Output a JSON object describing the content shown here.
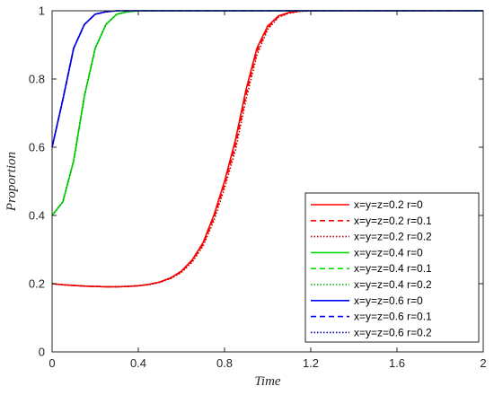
{
  "chart_data": {
    "type": "line",
    "title": "",
    "xlabel": "Time",
    "ylabel": "Proportion",
    "xlim": [
      0,
      2
    ],
    "ylim": [
      0,
      1
    ],
    "xticks": [
      "0",
      "0.4",
      "0.8",
      "1.2",
      "1.6",
      "2"
    ],
    "yticks": [
      "0",
      "0.2",
      "0.4",
      "0.6",
      "0.8",
      "1"
    ],
    "grid": false,
    "legend_position": "bottom-right",
    "x": [
      0,
      0.05,
      0.1,
      0.15,
      0.2,
      0.25,
      0.3,
      0.35,
      0.4,
      0.45,
      0.5,
      0.55,
      0.6,
      0.65,
      0.7,
      0.75,
      0.8,
      0.85,
      0.9,
      0.95,
      1.0,
      1.05,
      1.1,
      1.15,
      1.2,
      1.25,
      1.3,
      1.4,
      1.5,
      1.6,
      1.7,
      1.8,
      1.9,
      2.0
    ],
    "series": [
      {
        "name": "x=y=z=0.2 r=0",
        "color": "#ff0000",
        "style": "solid",
        "values": [
          0.2,
          0.197,
          0.195,
          0.193,
          0.192,
          0.191,
          0.191,
          0.192,
          0.194,
          0.198,
          0.205,
          0.217,
          0.237,
          0.27,
          0.32,
          0.4,
          0.5,
          0.62,
          0.77,
          0.89,
          0.955,
          0.985,
          0.995,
          0.999,
          1.0,
          1.0,
          1.0,
          1.0,
          1.0,
          1.0,
          1.0,
          1.0,
          1.0,
          1.0
        ]
      },
      {
        "name": "x=y=z=0.2 r=0.1",
        "color": "#ff0000",
        "style": "dashed",
        "values": [
          0.2,
          0.197,
          0.195,
          0.193,
          0.192,
          0.191,
          0.191,
          0.192,
          0.194,
          0.198,
          0.205,
          0.216,
          0.235,
          0.267,
          0.315,
          0.392,
          0.49,
          0.605,
          0.755,
          0.88,
          0.95,
          0.983,
          0.994,
          0.999,
          1.0,
          1.0,
          1.0,
          1.0,
          1.0,
          1.0,
          1.0,
          1.0,
          1.0,
          1.0
        ]
      },
      {
        "name": "x=y=z=0.2 r=0.2",
        "color": "#c00000",
        "style": "dotted",
        "values": [
          0.2,
          0.197,
          0.195,
          0.193,
          0.192,
          0.191,
          0.191,
          0.192,
          0.194,
          0.197,
          0.204,
          0.215,
          0.233,
          0.263,
          0.31,
          0.384,
          0.48,
          0.59,
          0.74,
          0.87,
          0.945,
          0.981,
          0.993,
          0.998,
          1.0,
          1.0,
          1.0,
          1.0,
          1.0,
          1.0,
          1.0,
          1.0,
          1.0,
          1.0
        ]
      },
      {
        "name": "x=y=z=0.4 r=0",
        "color": "#00dd00",
        "style": "solid",
        "values": [
          0.4,
          0.44,
          0.56,
          0.75,
          0.89,
          0.96,
          0.99,
          0.997,
          1.0,
          1.0,
          1.0,
          1.0,
          1.0,
          1.0,
          1.0,
          1.0,
          1.0,
          1.0,
          1.0,
          1.0,
          1.0,
          1.0,
          1.0,
          1.0,
          1.0,
          1.0,
          1.0,
          1.0,
          1.0,
          1.0,
          1.0,
          1.0,
          1.0,
          1.0
        ]
      },
      {
        "name": "x=y=z=0.4 r=0.1",
        "color": "#00dd00",
        "style": "dashed",
        "values": [
          0.4,
          0.44,
          0.56,
          0.75,
          0.89,
          0.96,
          0.99,
          0.997,
          1.0,
          1.0,
          1.0,
          1.0,
          1.0,
          1.0,
          1.0,
          1.0,
          1.0,
          1.0,
          1.0,
          1.0,
          1.0,
          1.0,
          1.0,
          1.0,
          1.0,
          1.0,
          1.0,
          1.0,
          1.0,
          1.0,
          1.0,
          1.0,
          1.0,
          1.0
        ]
      },
      {
        "name": "x=y=z=0.4 r=0.2",
        "color": "#00aa00",
        "style": "dotted",
        "values": [
          0.4,
          0.44,
          0.56,
          0.75,
          0.89,
          0.96,
          0.99,
          0.997,
          1.0,
          1.0,
          1.0,
          1.0,
          1.0,
          1.0,
          1.0,
          1.0,
          1.0,
          1.0,
          1.0,
          1.0,
          1.0,
          1.0,
          1.0,
          1.0,
          1.0,
          1.0,
          1.0,
          1.0,
          1.0,
          1.0,
          1.0,
          1.0,
          1.0,
          1.0
        ]
      },
      {
        "name": "x=y=z=0.6 r=0",
        "color": "#0000ff",
        "style": "solid",
        "values": [
          0.6,
          0.74,
          0.89,
          0.96,
          0.99,
          0.997,
          1.0,
          1.0,
          1.0,
          1.0,
          1.0,
          1.0,
          1.0,
          1.0,
          1.0,
          1.0,
          1.0,
          1.0,
          1.0,
          1.0,
          1.0,
          1.0,
          1.0,
          1.0,
          1.0,
          1.0,
          1.0,
          1.0,
          1.0,
          1.0,
          1.0,
          1.0,
          1.0,
          1.0
        ]
      },
      {
        "name": "x=y=z=0.6 r=0.1",
        "color": "#0000ff",
        "style": "dashed",
        "values": [
          0.6,
          0.74,
          0.89,
          0.96,
          0.99,
          0.997,
          1.0,
          1.0,
          1.0,
          1.0,
          1.0,
          1.0,
          1.0,
          1.0,
          1.0,
          1.0,
          1.0,
          1.0,
          1.0,
          1.0,
          1.0,
          1.0,
          1.0,
          1.0,
          1.0,
          1.0,
          1.0,
          1.0,
          1.0,
          1.0,
          1.0,
          1.0,
          1.0,
          1.0
        ]
      },
      {
        "name": "x=y=z=0.6 r=0.2",
        "color": "#0000aa",
        "style": "dotted",
        "values": [
          0.6,
          0.74,
          0.89,
          0.96,
          0.99,
          0.997,
          1.0,
          1.0,
          1.0,
          1.0,
          1.0,
          1.0,
          1.0,
          1.0,
          1.0,
          1.0,
          1.0,
          1.0,
          1.0,
          1.0,
          1.0,
          1.0,
          1.0,
          1.0,
          1.0,
          1.0,
          1.0,
          1.0,
          1.0,
          1.0,
          1.0,
          1.0,
          1.0,
          1.0
        ]
      }
    ]
  }
}
